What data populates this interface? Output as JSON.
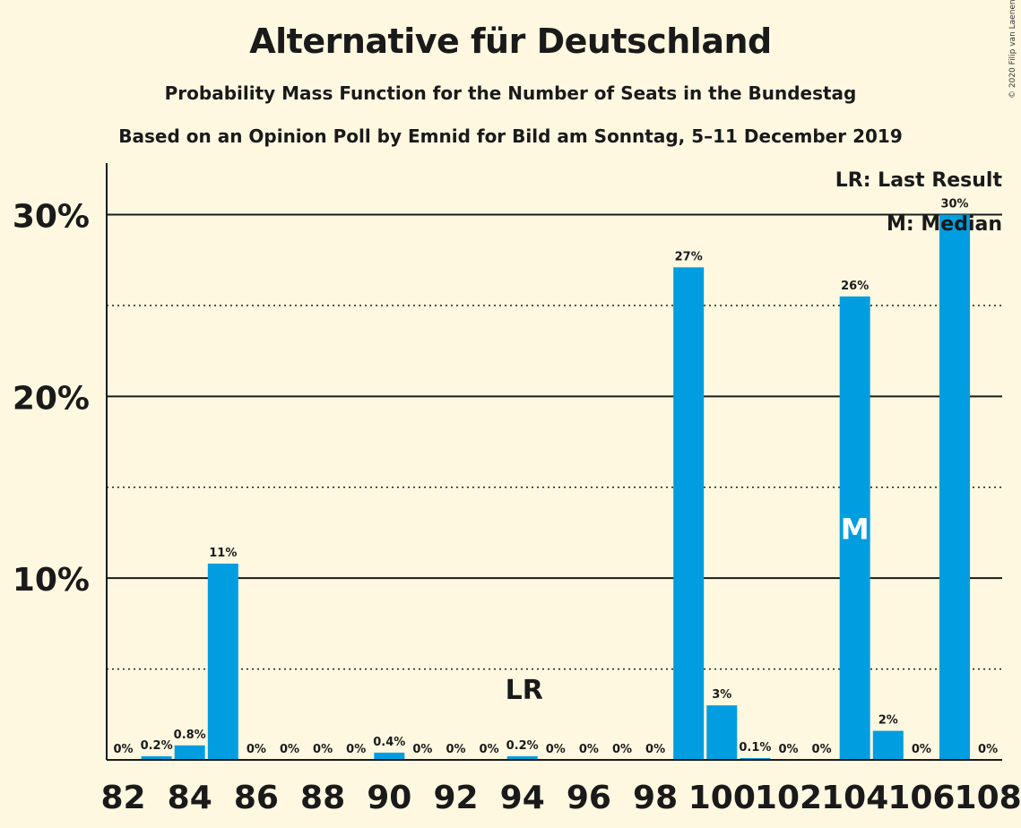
{
  "title": "Alternative für Deutschland",
  "subtitle": "Probability Mass Function for the Number of Seats in the Bundestag",
  "subtitle2": "Based on an Opinion Poll by Emnid for Bild am Sonntag, 5–11 December 2019",
  "copyright": "© 2020 Filip van Laenen",
  "legend": {
    "last_result": "LR: Last Result",
    "median": "M: Median"
  },
  "colors": {
    "bar": "#009ee0",
    "background": "#fff8e1",
    "text": "#1a1a1a"
  },
  "chart_data": {
    "type": "bar",
    "x": [
      82,
      83,
      84,
      85,
      86,
      87,
      88,
      89,
      90,
      91,
      92,
      93,
      94,
      95,
      96,
      97,
      98,
      99,
      100,
      101,
      102,
      103,
      104,
      105,
      106,
      107,
      108
    ],
    "values": [
      0,
      0.2,
      0.8,
      10.8,
      0,
      0,
      0,
      0,
      0.4,
      0,
      0,
      0,
      0.2,
      0,
      0,
      0,
      0,
      27.1,
      3.0,
      0.1,
      0,
      0,
      25.5,
      1.6,
      0,
      30.0,
      0
    ],
    "data_labels": [
      "0%",
      "0.2%",
      "0.8%",
      "11%",
      "0%",
      "0%",
      "0%",
      "0%",
      "0.4%",
      "0%",
      "0%",
      "0%",
      "0.2%",
      "0%",
      "0%",
      "0%",
      "0%",
      "27%",
      "3%",
      "0.1%",
      "0%",
      "0%",
      "26%",
      "2%",
      "0%",
      "30%",
      "0%"
    ],
    "x_ticks": [
      "82",
      "84",
      "86",
      "88",
      "90",
      "92",
      "94",
      "96",
      "98",
      "100",
      "102",
      "104",
      "106",
      "108"
    ],
    "y_ticks": [
      "10%",
      "20%",
      "30%"
    ],
    "y_tick_values": [
      10,
      20,
      30
    ],
    "y_dotted_values": [
      5,
      15,
      25
    ],
    "ylim": [
      0,
      32.5
    ],
    "last_result_seat": 94,
    "last_result_marker": "LR",
    "median_seat": 104,
    "median_marker": "M"
  }
}
